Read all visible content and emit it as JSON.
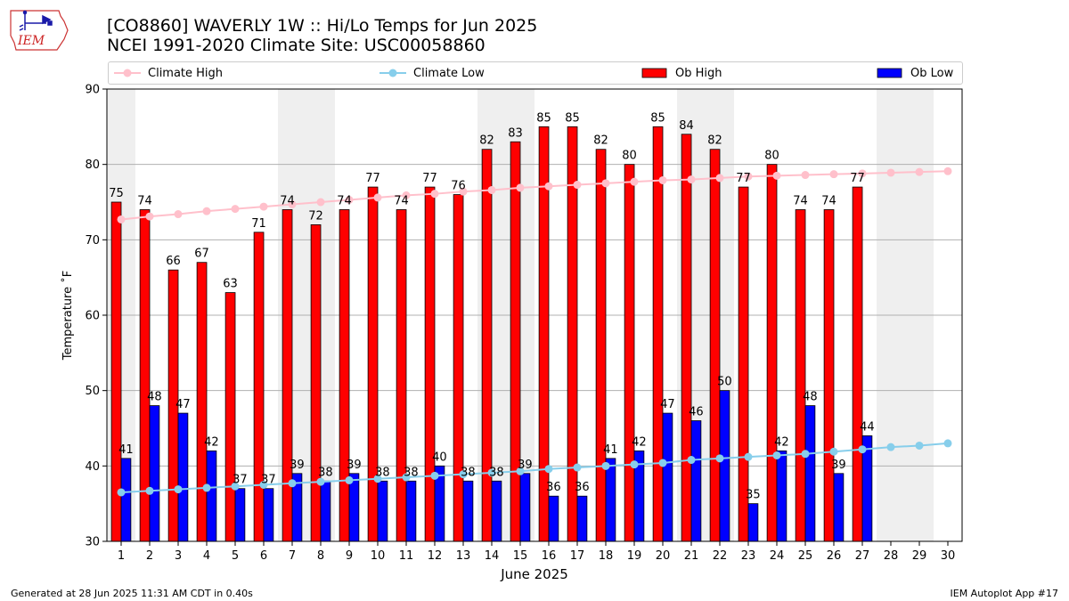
{
  "header": {
    "title": "[CO8860] WAVERLY 1W :: Hi/Lo Temps for Jun 2025",
    "subtitle": "NCEI 1991-2020 Climate Site: USC00058860",
    "logo_text": "IEM"
  },
  "footer": {
    "generated": "Generated at 28 Jun 2025 11:31 AM CDT in 0.40s",
    "app": "IEM Autoplot App #17"
  },
  "chart_data": {
    "type": "bar",
    "xlabel": "June 2025",
    "ylabel": "Temperature ˚F",
    "ylim": [
      30,
      90
    ],
    "yticks": [
      30,
      40,
      50,
      60,
      70,
      80,
      90
    ],
    "grid": true,
    "legend_position": "top",
    "weekend_shading": [
      1,
      7,
      8,
      14,
      15,
      21,
      22,
      28,
      29
    ],
    "categories": [
      "1",
      "2",
      "3",
      "4",
      "5",
      "6",
      "7",
      "8",
      "9",
      "10",
      "11",
      "12",
      "13",
      "14",
      "15",
      "16",
      "17",
      "18",
      "19",
      "20",
      "21",
      "22",
      "23",
      "24",
      "25",
      "26",
      "27",
      "28",
      "29",
      "30"
    ],
    "series": [
      {
        "name": "Ob High",
        "kind": "bar",
        "color": "#ff0000",
        "values": [
          75,
          74,
          66,
          67,
          63,
          71,
          74,
          72,
          74,
          77,
          74,
          77,
          76,
          82,
          83,
          85,
          85,
          82,
          80,
          85,
          84,
          82,
          77,
          80,
          74,
          74,
          77,
          null,
          null,
          null
        ]
      },
      {
        "name": "Ob Low",
        "kind": "bar",
        "color": "#0000ff",
        "values": [
          41,
          48,
          47,
          42,
          37,
          37,
          39,
          38,
          39,
          38,
          38,
          40,
          38,
          38,
          39,
          36,
          36,
          41,
          42,
          47,
          46,
          50,
          35,
          42,
          48,
          39,
          44,
          null,
          null,
          null
        ]
      },
      {
        "name": "Climate High",
        "kind": "line",
        "color": "#ffc0cb",
        "values": [
          72.7,
          73.1,
          73.4,
          73.8,
          74.1,
          74.4,
          74.7,
          75.0,
          75.3,
          75.6,
          75.9,
          76.1,
          76.4,
          76.6,
          76.9,
          77.1,
          77.3,
          77.5,
          77.7,
          77.9,
          78.0,
          78.2,
          78.4,
          78.5,
          78.6,
          78.7,
          78.8,
          78.9,
          79.0,
          79.1
        ]
      },
      {
        "name": "Climate Low",
        "kind": "line",
        "color": "#87ceeb",
        "values": [
          36.5,
          36.7,
          36.9,
          37.1,
          37.3,
          37.5,
          37.7,
          37.9,
          38.1,
          38.3,
          38.5,
          38.7,
          38.9,
          39.1,
          39.3,
          39.6,
          39.8,
          40.0,
          40.2,
          40.4,
          40.8,
          41.0,
          41.2,
          41.4,
          41.6,
          41.9,
          42.2,
          42.5,
          42.7,
          43.0
        ]
      }
    ]
  }
}
